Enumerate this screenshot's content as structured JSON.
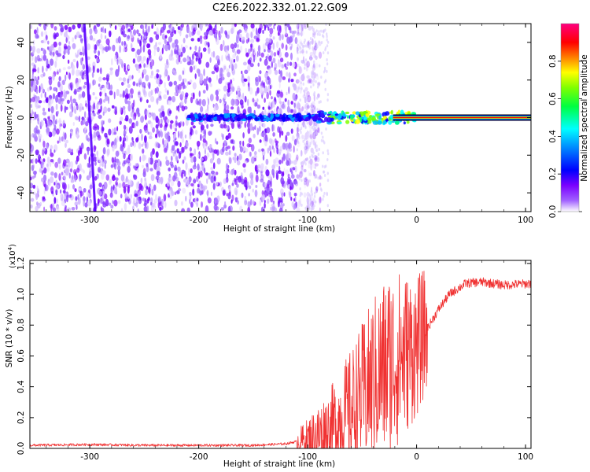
{
  "title": "C2E6.2022.332.01.22.G09",
  "chart_data": [
    {
      "type": "heatmap",
      "name": "spectrogram",
      "xlabel": "Height of straight line (km)",
      "ylabel": "Frequency (Hz)",
      "xlim": [
        -355,
        105
      ],
      "ylim": [
        -50,
        50
      ],
      "xticks": [
        -300,
        -200,
        -100,
        0,
        100
      ],
      "yticks": [
        -40,
        -20,
        0,
        20,
        40
      ],
      "colorbar": {
        "label": "Normalized spectral amplitude",
        "range": [
          0,
          1
        ],
        "ticks": [
          "0.0",
          "0.2",
          "0.4",
          "0.6",
          "0.8"
        ],
        "colormap": [
          "#ffffff",
          "#7a00ff",
          "#0000ff",
          "#00ffff",
          "#00ff00",
          "#ffff00",
          "#ff0000",
          "#ff0080"
        ]
      },
      "features": {
        "noise_region_x": [
          -355,
          -110
        ],
        "signal_line_start_x": 0,
        "signal_line_freq": 0,
        "diagonal_streak": {
          "x_top": -305,
          "x_bottom": -300
        }
      }
    },
    {
      "type": "line",
      "name": "snr",
      "xlabel": "Height of straight line (km)",
      "ylabel": "SNR (10 * v/v)",
      "yscale_label": "(x10",
      "yscale_exp": "4",
      "yscale_close": ")",
      "xlim": [
        -355,
        105
      ],
      "ylim": [
        0,
        1.22
      ],
      "xticks": [
        -300,
        -200,
        -100,
        0,
        100
      ],
      "yticks": [
        0.0,
        0.2,
        0.4,
        0.6,
        0.8,
        1.0,
        1.2
      ],
      "color": "#f03232",
      "profile": [
        [
          -355,
          0.02
        ],
        [
          -300,
          0.025
        ],
        [
          -250,
          0.02
        ],
        [
          -200,
          0.02
        ],
        [
          -150,
          0.02
        ],
        [
          -120,
          0.03
        ],
        [
          -100,
          0.06
        ],
        [
          -80,
          0.12
        ],
        [
          -60,
          0.25
        ],
        [
          -40,
          0.45
        ],
        [
          -25,
          0.55
        ],
        [
          -10,
          0.62
        ],
        [
          0,
          0.66
        ],
        [
          10,
          0.78
        ],
        [
          20,
          0.9
        ],
        [
          30,
          1.0
        ],
        [
          45,
          1.07
        ],
        [
          60,
          1.08
        ],
        [
          80,
          1.06
        ],
        [
          105,
          1.07
        ]
      ]
    }
  ]
}
